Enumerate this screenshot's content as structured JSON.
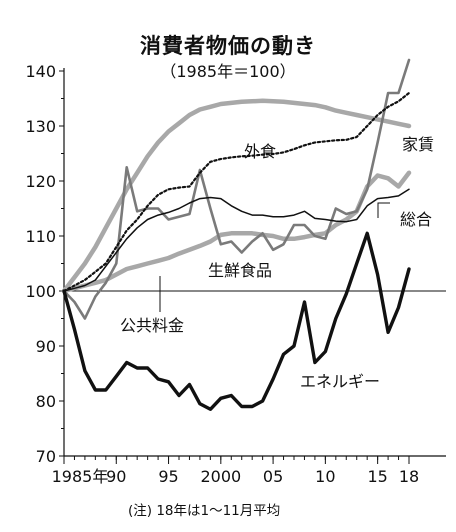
{
  "chart_data": {
    "type": "line",
    "title": "消費者物価の動き",
    "subtitle": "（1985年＝100）",
    "note": "(注) 18年は1～11月平均",
    "x": [
      1985,
      1986,
      1987,
      1988,
      1989,
      1990,
      1991,
      1992,
      1993,
      1994,
      1995,
      1996,
      1997,
      1998,
      1999,
      2000,
      2001,
      2002,
      2003,
      2004,
      2005,
      2006,
      2007,
      2008,
      2009,
      2010,
      2011,
      2012,
      2013,
      2014,
      2015,
      2016,
      2017,
      2018
    ],
    "x_ticks": [
      {
        "value": 1985,
        "label": "1985年"
      },
      {
        "value": 1990,
        "label": "90"
      },
      {
        "value": 1995,
        "label": "95"
      },
      {
        "value": 2000,
        "label": "2000"
      },
      {
        "value": 2005,
        "label": "05"
      },
      {
        "value": 2010,
        "label": "10"
      },
      {
        "value": 2015,
        "label": "15"
      },
      {
        "value": 2018,
        "label": "18"
      }
    ],
    "y_ticks": [
      "70",
      "80",
      "90",
      "100",
      "110",
      "120",
      "130",
      "140"
    ],
    "xlim": [
      1985,
      2018
    ],
    "ylim": [
      70,
      143
    ],
    "baseline": 100,
    "series": [
      {
        "name": "家賃",
        "style": "thick-light",
        "values": [
          100,
          102.5,
          105,
          108,
          111.5,
          115,
          118.5,
          121.5,
          124.5,
          127,
          129,
          130.5,
          132,
          133,
          133.5,
          134,
          134.2,
          134.4,
          134.5,
          134.6,
          134.5,
          134.4,
          134.2,
          134,
          133.8,
          133.4,
          132.8,
          132.4,
          132,
          131.6,
          131.2,
          130.8,
          130.4,
          130
        ]
      },
      {
        "name": "外食",
        "style": "dotted",
        "values": [
          100,
          101,
          102,
          103.5,
          105,
          108,
          111,
          113,
          115.5,
          117.5,
          118.5,
          118.8,
          119,
          121.5,
          123.5,
          124,
          124.3,
          124.5,
          124.6,
          124.8,
          124.9,
          125.2,
          125.8,
          126.5,
          127,
          127.2,
          127.4,
          127.5,
          128,
          130,
          132,
          133.5,
          134.5,
          136
        ]
      },
      {
        "name": "総合",
        "style": "thin-black",
        "values": [
          100,
          100.5,
          101,
          102,
          104.5,
          107,
          109.5,
          111.5,
          113,
          113.8,
          114.3,
          115,
          116,
          116.8,
          117,
          116.8,
          115.5,
          114.5,
          113.8,
          113.8,
          113.5,
          113.5,
          113.8,
          114.5,
          113.2,
          113,
          112.7,
          112.6,
          113,
          115.5,
          116.8,
          117,
          117.3,
          118.5
        ]
      },
      {
        "name": "生鮮食品",
        "style": "medium-gray",
        "values": [
          100,
          98,
          95,
          99,
          101.5,
          105,
          122.5,
          114.5,
          115,
          115,
          113,
          113.5,
          114,
          122,
          115,
          108.5,
          109,
          107,
          109,
          110.5,
          107.5,
          108.5,
          112,
          112,
          110,
          109.5,
          115,
          114,
          114.5,
          118.5,
          127,
          136,
          136,
          142
        ]
      },
      {
        "name": "公共料金",
        "style": "thick-light",
        "values": [
          100,
          100.5,
          101,
          101.5,
          102,
          103,
          104,
          104.5,
          105,
          105.5,
          106,
          106.8,
          107.5,
          108.2,
          109,
          110.2,
          110.5,
          110.5,
          110.5,
          110.2,
          110,
          109.5,
          109.5,
          109.8,
          110.2,
          110.5,
          112,
          113,
          114.5,
          119,
          121,
          120.5,
          119,
          121.5
        ]
      },
      {
        "name": "エネルギー",
        "style": "thick-black",
        "values": [
          100,
          93,
          85.5,
          82,
          82,
          84.5,
          87,
          86,
          86,
          84,
          83.5,
          81,
          83,
          79.5,
          78.5,
          80.5,
          81,
          79,
          79,
          80,
          84,
          88.5,
          90,
          98,
          87,
          89,
          95,
          99.5,
          105,
          110.5,
          103,
          92.5,
          97,
          104
        ]
      }
    ],
    "labels": {
      "家賃": "家賃",
      "外食": "外食",
      "総合": "総合",
      "生鮮食品": "生鮮食品",
      "公共料金": "公共料金",
      "エネルギー": "エネルギー"
    },
    "series_colors": {
      "家賃": "#a8a8a8",
      "外食": "#111111",
      "総合": "#111111",
      "生鮮食品": "#7a7a7a",
      "公共料金": "#a8a8a8",
      "エネルギー": "#111111"
    }
  }
}
